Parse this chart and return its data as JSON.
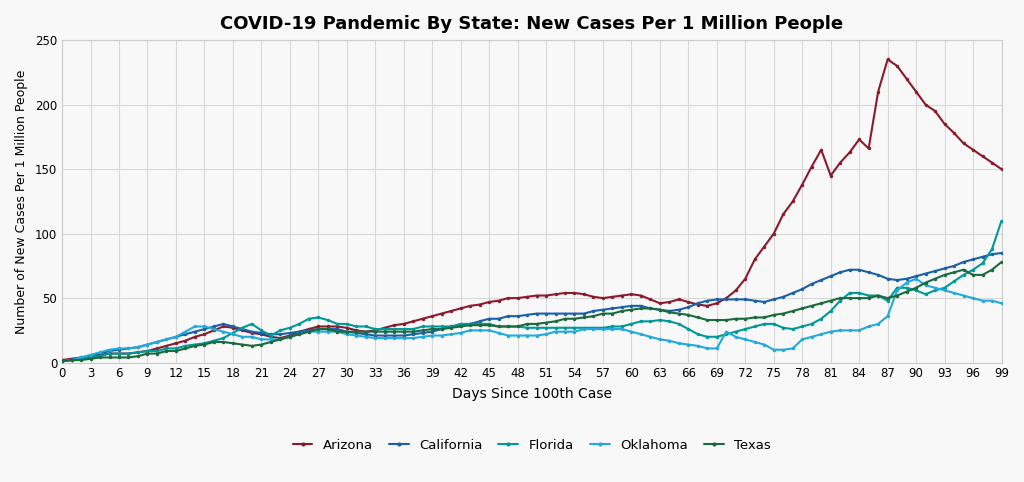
{
  "title": "COVID-19 Pandemic By State: New Cases Per 1 Million People",
  "xlabel": "Days Since 100th Case",
  "ylabel": "Number of New Cases Per 1 Million People",
  "ylim": [
    0,
    250
  ],
  "yticks": [
    0,
    50,
    100,
    150,
    200,
    250
  ],
  "xlim": [
    0,
    99
  ],
  "xticks": [
    0,
    3,
    6,
    9,
    12,
    15,
    18,
    21,
    24,
    27,
    30,
    33,
    36,
    39,
    42,
    45,
    48,
    51,
    54,
    57,
    60,
    63,
    66,
    69,
    72,
    75,
    78,
    81,
    84,
    87,
    90,
    93,
    96,
    99
  ],
  "background_color": "#f8f8f8",
  "grid_color": "#d8d8d8",
  "colors": {
    "Arizona": "#8b1a2e",
    "California": "#1a5fa8",
    "Florida": "#009999",
    "Oklahoma": "#22aadd",
    "Texas": "#1a6b3c"
  },
  "line_width": 1.5,
  "marker_size": 2.5,
  "Arizona": [
    2,
    3,
    4,
    5,
    6,
    7,
    7,
    7,
    8,
    9,
    11,
    13,
    15,
    17,
    20,
    22,
    25,
    28,
    27,
    25,
    23,
    22,
    20,
    19,
    21,
    24,
    26,
    28,
    28,
    28,
    27,
    25,
    24,
    25,
    27,
    29,
    30,
    32,
    34,
    36,
    38,
    40,
    42,
    44,
    45,
    47,
    48,
    50,
    50,
    51,
    52,
    52,
    53,
    54,
    54,
    53,
    51,
    50,
    51,
    52,
    53,
    52,
    49,
    46,
    47,
    49,
    47,
    45,
    44,
    46,
    50,
    56,
    65,
    80,
    90,
    100,
    115,
    125,
    138,
    152,
    165,
    145,
    155,
    163,
    173,
    166,
    210,
    235,
    230,
    220,
    210,
    200,
    195,
    185,
    178,
    170,
    165,
    160,
    155,
    150
  ],
  "California": [
    1,
    2,
    3,
    5,
    7,
    9,
    10,
    11,
    12,
    14,
    16,
    18,
    20,
    22,
    24,
    26,
    28,
    30,
    28,
    26,
    24,
    23,
    22,
    22,
    23,
    24,
    25,
    26,
    26,
    26,
    24,
    23,
    22,
    21,
    21,
    21,
    21,
    22,
    23,
    24,
    26,
    28,
    29,
    30,
    32,
    34,
    34,
    36,
    36,
    37,
    38,
    38,
    38,
    38,
    38,
    38,
    40,
    41,
    42,
    43,
    44,
    44,
    42,
    41,
    40,
    41,
    43,
    46,
    48,
    49,
    49,
    49,
    49,
    48,
    47,
    49,
    51,
    54,
    57,
    61,
    64,
    67,
    70,
    72,
    72,
    70,
    68,
    65,
    64,
    65,
    67,
    69,
    71,
    73,
    75,
    78,
    80,
    82,
    84,
    85
  ],
  "Florida": [
    1,
    2,
    3,
    4,
    5,
    7,
    7,
    7,
    8,
    9,
    9,
    11,
    11,
    13,
    14,
    15,
    17,
    19,
    23,
    27,
    30,
    25,
    21,
    25,
    27,
    30,
    34,
    35,
    33,
    30,
    30,
    28,
    28,
    26,
    26,
    26,
    26,
    26,
    28,
    28,
    28,
    28,
    30,
    30,
    30,
    30,
    28,
    28,
    28,
    27,
    27,
    27,
    27,
    27,
    27,
    27,
    27,
    27,
    28,
    28,
    30,
    32,
    32,
    33,
    32,
    30,
    26,
    22,
    20,
    20,
    22,
    24,
    26,
    28,
    30,
    30,
    27,
    26,
    28,
    30,
    34,
    40,
    48,
    54,
    54,
    52,
    52,
    48,
    58,
    58,
    56,
    53,
    56,
    58,
    63,
    68,
    72,
    77,
    88,
    110
  ],
  "Oklahoma": [
    1,
    2,
    4,
    6,
    8,
    10,
    11,
    11,
    12,
    14,
    16,
    18,
    20,
    24,
    28,
    28,
    26,
    24,
    22,
    20,
    20,
    18,
    18,
    18,
    20,
    22,
    24,
    24,
    24,
    24,
    22,
    21,
    20,
    19,
    19,
    19,
    19,
    19,
    20,
    21,
    21,
    22,
    23,
    25,
    25,
    25,
    23,
    21,
    21,
    21,
    21,
    22,
    24,
    24,
    24,
    26,
    26,
    26,
    26,
    26,
    24,
    22,
    20,
    18,
    17,
    15,
    14,
    13,
    11,
    11,
    24,
    20,
    18,
    16,
    14,
    10,
    10,
    11,
    18,
    20,
    22,
    24,
    25,
    25,
    25,
    28,
    30,
    36,
    56,
    62,
    65,
    60,
    58,
    56,
    54,
    52,
    50,
    48,
    48,
    46
  ],
  "Texas": [
    1,
    2,
    2,
    3,
    4,
    4,
    4,
    4,
    5,
    7,
    7,
    9,
    9,
    11,
    13,
    14,
    16,
    16,
    15,
    14,
    13,
    14,
    16,
    18,
    20,
    22,
    24,
    26,
    26,
    24,
    24,
    24,
    24,
    24,
    24,
    24,
    24,
    24,
    25,
    26,
    26,
    27,
    28,
    29,
    29,
    29,
    28,
    28,
    28,
    30,
    30,
    31,
    32,
    34,
    34,
    35,
    36,
    38,
    38,
    40,
    41,
    42,
    42,
    41,
    39,
    38,
    37,
    35,
    33,
    33,
    33,
    34,
    34,
    35,
    35,
    37,
    38,
    40,
    42,
    44,
    46,
    48,
    50,
    50,
    50,
    50,
    52,
    50,
    52,
    55,
    58,
    62,
    65,
    68,
    70,
    72,
    68,
    68,
    72,
    78
  ]
}
